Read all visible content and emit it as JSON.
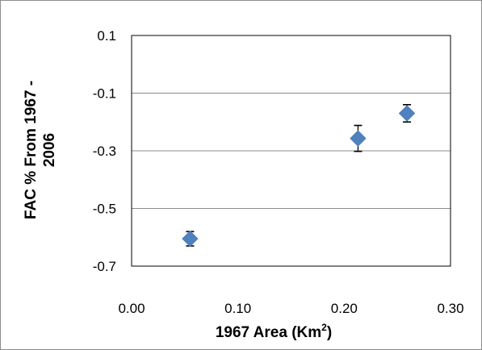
{
  "chart_data": {
    "type": "scatter",
    "xlabel": "1967 Area (Km",
    "xlabel_sup": "2",
    "xlabel_end": ")",
    "ylabel_line1": "FAC  % From  1967 -",
    "ylabel_line2": "2006",
    "xlim": [
      0.0,
      0.3
    ],
    "ylim": [
      -0.7,
      0.1
    ],
    "x_ticks": [
      0.0,
      0.1,
      0.2,
      0.3
    ],
    "x_tick_labels": [
      "0.00",
      "0.10",
      "0.20",
      "0.30"
    ],
    "y_ticks": [
      0.1,
      -0.1,
      -0.3,
      -0.5,
      -0.7
    ],
    "y_tick_labels": [
      "0.1",
      "-0.1",
      "-0.3",
      "-0.5",
      "-0.7"
    ],
    "grid": "horizontal",
    "marker_color": "#4f81bd",
    "points": [
      {
        "x": 0.055,
        "y": -0.605,
        "err_low": 0.025,
        "err_high": 0.025
      },
      {
        "x": 0.213,
        "y": -0.257,
        "err_low": 0.045,
        "err_high": 0.045
      },
      {
        "x": 0.259,
        "y": -0.17,
        "err_low": 0.03,
        "err_high": 0.03
      }
    ]
  }
}
